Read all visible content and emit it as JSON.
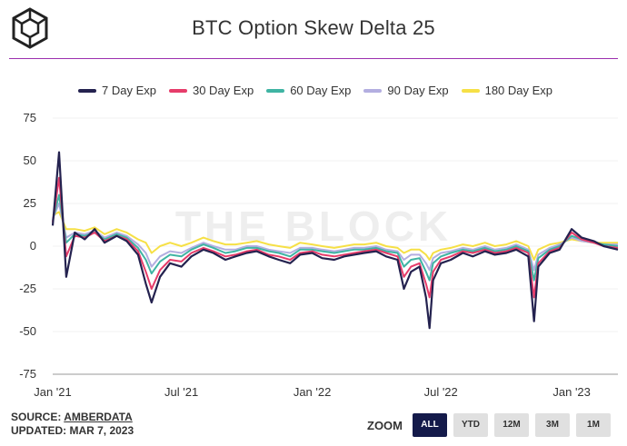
{
  "header": {
    "title": "BTC Option Skew Delta 25"
  },
  "legend": [
    {
      "label": "7 Day Exp",
      "color": "#24224f"
    },
    {
      "label": "30 Day Exp",
      "color": "#e63c6a"
    },
    {
      "label": "60 Day Exp",
      "color": "#3fb4a3"
    },
    {
      "label": "90 Day Exp",
      "color": "#b3aee0"
    },
    {
      "label": "180 Day Exp",
      "color": "#f6e046"
    }
  ],
  "watermark": "THE BLOCK",
  "footer": {
    "source_prefix": "SOURCE: ",
    "source_name": "AMBERDATA",
    "updated": "UPDATED: MAR 7, 2023"
  },
  "zoom": {
    "label": "ZOOM",
    "buttons": [
      "ALL",
      "YTD",
      "12M",
      "3M",
      "1M"
    ],
    "active": "ALL"
  },
  "chart_data": {
    "type": "line",
    "title": "BTC Option Skew Delta 25",
    "xlabel": "",
    "ylabel": "",
    "ylim": [
      -75,
      75
    ],
    "yticks": [
      75,
      50,
      25,
      0,
      -25,
      -50,
      -75
    ],
    "x_range": [
      "2021-01-01",
      "2023-03-07"
    ],
    "xticks": [
      {
        "date": "2021-01-01",
        "label": "Jan '21"
      },
      {
        "date": "2021-07-01",
        "label": "Jul '21"
      },
      {
        "date": "2022-01-01",
        "label": "Jan '22"
      },
      {
        "date": "2022-07-01",
        "label": "Jul '22"
      },
      {
        "date": "2023-01-01",
        "label": "Jan '23"
      }
    ],
    "dates": [
      "2021-01-01",
      "2021-01-10",
      "2021-01-20",
      "2021-02-01",
      "2021-02-15",
      "2021-03-01",
      "2021-03-15",
      "2021-04-01",
      "2021-04-15",
      "2021-05-01",
      "2021-05-12",
      "2021-05-20",
      "2021-06-01",
      "2021-06-15",
      "2021-07-01",
      "2021-07-15",
      "2021-08-01",
      "2021-08-15",
      "2021-09-01",
      "2021-09-15",
      "2021-10-01",
      "2021-10-15",
      "2021-11-01",
      "2021-11-15",
      "2021-12-01",
      "2021-12-15",
      "2022-01-01",
      "2022-01-15",
      "2022-02-01",
      "2022-02-15",
      "2022-03-01",
      "2022-03-15",
      "2022-04-01",
      "2022-04-15",
      "2022-05-01",
      "2022-05-10",
      "2022-05-20",
      "2022-06-01",
      "2022-06-10",
      "2022-06-15",
      "2022-06-20",
      "2022-07-01",
      "2022-07-15",
      "2022-08-01",
      "2022-08-15",
      "2022-09-01",
      "2022-09-15",
      "2022-10-01",
      "2022-10-15",
      "2022-11-01",
      "2022-11-09",
      "2022-11-15",
      "2022-12-01",
      "2022-12-15",
      "2023-01-01",
      "2023-01-15",
      "2023-02-01",
      "2023-02-15",
      "2023-03-07"
    ],
    "series": [
      {
        "name": "7 Day Exp",
        "values": [
          12,
          55,
          -18,
          8,
          4,
          10,
          2,
          6,
          3,
          -5,
          -22,
          -33,
          -18,
          -10,
          -12,
          -6,
          -2,
          -4,
          -8,
          -6,
          -4,
          -3,
          -6,
          -8,
          -10,
          -5,
          -4,
          -7,
          -8,
          -6,
          -5,
          -4,
          -3,
          -6,
          -8,
          -25,
          -15,
          -12,
          -30,
          -48,
          -20,
          -10,
          -8,
          -4,
          -6,
          -3,
          -5,
          -4,
          -2,
          -6,
          -44,
          -12,
          -4,
          -2,
          10,
          5,
          3,
          0,
          -2
        ]
      },
      {
        "name": "30 Day Exp",
        "values": [
          14,
          40,
          -6,
          6,
          5,
          8,
          3,
          6,
          4,
          -3,
          -15,
          -25,
          -14,
          -8,
          -9,
          -4,
          -1,
          -3,
          -6,
          -5,
          -3,
          -2,
          -5,
          -6,
          -8,
          -4,
          -3,
          -5,
          -6,
          -5,
          -4,
          -3,
          -2,
          -4,
          -6,
          -18,
          -12,
          -10,
          -22,
          -30,
          -15,
          -8,
          -6,
          -3,
          -4,
          -2,
          -4,
          -3,
          -1,
          -4,
          -30,
          -10,
          -3,
          -1,
          8,
          4,
          2,
          0,
          -1
        ]
      },
      {
        "name": "60 Day Exp",
        "values": [
          15,
          30,
          2,
          7,
          6,
          8,
          4,
          7,
          5,
          -1,
          -8,
          -16,
          -9,
          -5,
          -6,
          -2,
          1,
          -1,
          -4,
          -3,
          -1,
          -1,
          -3,
          -4,
          -6,
          -2,
          -2,
          -3,
          -4,
          -3,
          -2,
          -2,
          -1,
          -3,
          -4,
          -12,
          -8,
          -7,
          -15,
          -20,
          -10,
          -6,
          -4,
          -2,
          -3,
          -1,
          -3,
          -2,
          0,
          -3,
          -20,
          -7,
          -2,
          0,
          6,
          4,
          2,
          1,
          0
        ]
      },
      {
        "name": "90 Day Exp",
        "values": [
          16,
          25,
          5,
          8,
          7,
          9,
          5,
          8,
          6,
          1,
          -4,
          -12,
          -6,
          -3,
          -4,
          -1,
          2,
          0,
          -2,
          -2,
          0,
          0,
          -2,
          -3,
          -4,
          -1,
          -1,
          -2,
          -3,
          -2,
          -1,
          -1,
          0,
          -2,
          -3,
          -8,
          -5,
          -5,
          -10,
          -14,
          -7,
          -4,
          -3,
          -1,
          -2,
          0,
          -2,
          -1,
          1,
          -2,
          -14,
          -5,
          -1,
          1,
          5,
          3,
          2,
          1,
          1
        ]
      },
      {
        "name": "180 Day Exp",
        "values": [
          18,
          20,
          10,
          10,
          9,
          11,
          7,
          10,
          8,
          4,
          2,
          -4,
          0,
          2,
          0,
          2,
          5,
          3,
          1,
          1,
          2,
          3,
          1,
          0,
          -1,
          2,
          1,
          0,
          -1,
          0,
          1,
          1,
          2,
          0,
          -1,
          -4,
          -2,
          -2,
          -5,
          -8,
          -4,
          -2,
          -1,
          1,
          0,
          2,
          0,
          1,
          3,
          0,
          -8,
          -2,
          1,
          2,
          4,
          3,
          2,
          2,
          2
        ]
      }
    ]
  }
}
